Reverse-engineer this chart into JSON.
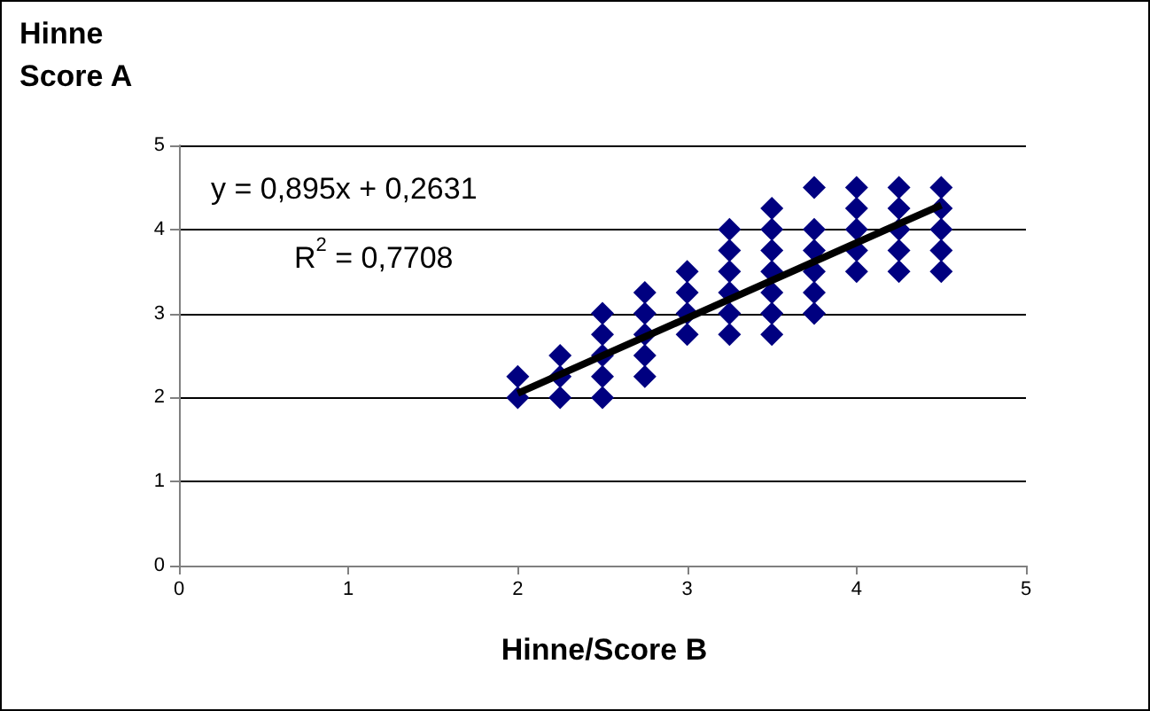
{
  "chart_data": {
    "type": "scatter",
    "xlabel": "Hinne/Score B",
    "ylabel": "Hinne Score A",
    "series": [
      {
        "marker": "diamond",
        "color": "#000080",
        "x": [
          2,
          2,
          2.25,
          2.25,
          2.25,
          2.5,
          2.5,
          2.5,
          2.5,
          2.5,
          2.75,
          2.75,
          2.75,
          2.75,
          2.75,
          3,
          3,
          3,
          3,
          3.25,
          3.25,
          3.25,
          3.25,
          3.25,
          3.25,
          3.5,
          3.5,
          3.5,
          3.5,
          3.5,
          3.5,
          3.5,
          3.75,
          3.75,
          3.75,
          3.75,
          3.75,
          3.75,
          4,
          4,
          4,
          4,
          4,
          4.25,
          4.25,
          4.25,
          4.25,
          4.25,
          4.5,
          4.5,
          4.5,
          4.5,
          4.5
        ],
        "values": [
          2.25,
          2,
          2.5,
          2.25,
          2,
          3,
          2.75,
          2.5,
          2.25,
          2,
          3.25,
          3,
          2.75,
          2.5,
          2.25,
          3.5,
          3.25,
          3,
          2.75,
          4,
          3.75,
          3.5,
          3.25,
          3,
          2.75,
          4.25,
          4,
          3.75,
          3.5,
          3.25,
          3,
          2.75,
          4.5,
          4,
          3.75,
          3.5,
          3.25,
          3,
          4.5,
          4.25,
          4,
          3.75,
          3.5,
          4.5,
          4.25,
          4,
          3.75,
          3.5,
          4.5,
          4.25,
          4,
          3.75,
          3.5
        ]
      },
      {
        "type": "line",
        "marker": "none",
        "color": "#000000",
        "x": [
          2,
          4.5
        ],
        "values": [
          2.05,
          4.29
        ]
      }
    ],
    "annotations": [
      "y = 0,895x + 0,2631",
      "R$^{2}$ = 0,7708"
    ],
    "xlim": [
      0,
      5
    ],
    "xticks": [
      0,
      1,
      2,
      3,
      4,
      5
    ],
    "ylim": [
      0,
      5
    ],
    "yticks": [
      0,
      1,
      2,
      3,
      4,
      5
    ],
    "grid": "y"
  }
}
